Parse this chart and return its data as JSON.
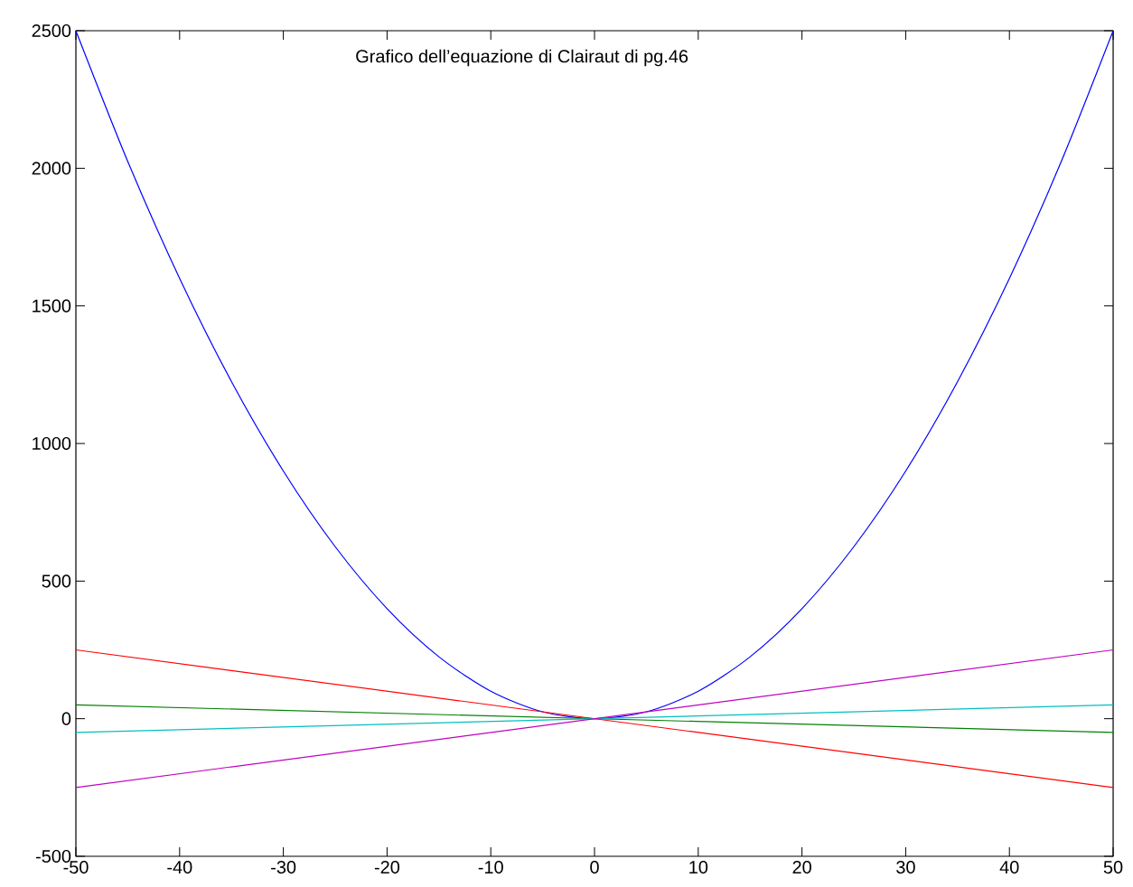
{
  "chart_data": {
    "type": "line",
    "title": "Grafico dell’equazione di Clairaut di pg.46",
    "xlim": [
      -50,
      50
    ],
    "ylim": [
      -500,
      2500
    ],
    "xticks": [
      -50,
      -40,
      -30,
      -20,
      -10,
      0,
      10,
      20,
      30,
      40,
      50
    ],
    "yticks": [
      -500,
      0,
      500,
      1000,
      1500,
      2000,
      2500
    ],
    "marker": "none",
    "line_style": "solid",
    "series": [
      {
        "color": "#0000ff",
        "x": [
          -50,
          -45,
          -40,
          -35,
          -30,
          -25,
          -20,
          -15,
          -10,
          -5,
          0,
          5,
          10,
          15,
          20,
          25,
          30,
          35,
          40,
          45,
          50
        ],
        "values": [
          2500,
          2025,
          1600,
          1225,
          900,
          625,
          400,
          225,
          100,
          25,
          0,
          25,
          100,
          225,
          400,
          625,
          900,
          1225,
          1600,
          2025,
          2500
        ]
      },
      {
        "color": "#ff0000",
        "x": [
          -50,
          50
        ],
        "values": [
          250,
          -250
        ]
      },
      {
        "color": "#008000",
        "x": [
          -50,
          50
        ],
        "values": [
          50,
          -50
        ]
      },
      {
        "color": "#00bfbf",
        "x": [
          -50,
          50
        ],
        "values": [
          -50,
          50
        ]
      },
      {
        "color": "#bf00bf",
        "x": [
          -50,
          50
        ],
        "values": [
          -250,
          250
        ]
      }
    ]
  }
}
